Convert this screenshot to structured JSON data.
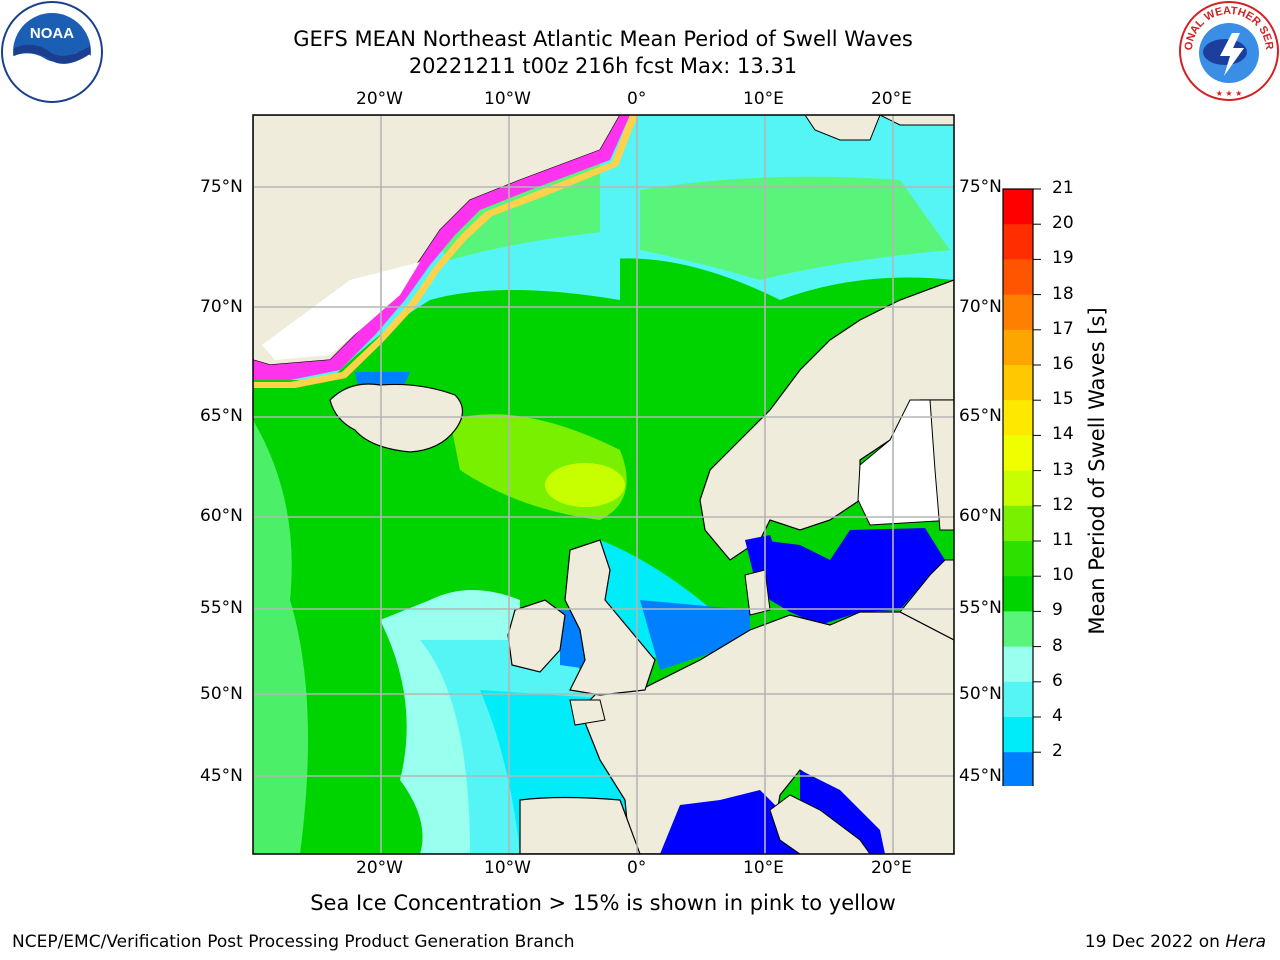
{
  "header": {
    "title_line1": "GEFS MEAN Northeast Atlantic Mean Period of Swell Waves",
    "title_line2": "20221211 t00z 216h fcst   Max: 13.31"
  },
  "logos": {
    "left": "NOAA",
    "right": "NATIONAL WEATHER SERVICE"
  },
  "map": {
    "parameter": "Mean Period of Swell Waves",
    "lon_ticks": [
      "20°W",
      "10°W",
      "0°",
      "10°E",
      "20°E"
    ],
    "lat_ticks": [
      "75°N",
      "70°N",
      "65°N",
      "60°N",
      "55°N",
      "50°N",
      "45°N"
    ]
  },
  "colorbar": {
    "label": "Mean Period of Swell Waves [s]",
    "ticks": [
      "21",
      "20",
      "19",
      "18",
      "17",
      "16",
      "15",
      "14",
      "13",
      "12",
      "11",
      "10",
      "9",
      "8",
      "6",
      "4",
      "2"
    ],
    "colors": [
      "#ff0000",
      "#ff2d00",
      "#ff5500",
      "#ff7f00",
      "#ffa500",
      "#ffc800",
      "#ffe800",
      "#f0ff00",
      "#c8ff00",
      "#78f000",
      "#2de000",
      "#00d400",
      "#59f57a",
      "#99ffee",
      "#55f5f5",
      "#00ecf8",
      "#0080ff"
    ],
    "extend_color": "#0000ff"
  },
  "footer": {
    "note": "Sea Ice Concentration > 15% is shown in pink to yellow",
    "credit": "NCEP/EMC/Verification Post Processing Product Generation Branch",
    "date_prefix": "19 Dec 2022 on",
    "machine": "Hera"
  },
  "colors": {
    "land": "#efecdc",
    "coast": "#000000",
    "grid": "#b5b5b5",
    "ice_pink": "#ff33ee",
    "ice_yellow": "#ffd24a",
    "ice_free_white": "#ffffff"
  }
}
